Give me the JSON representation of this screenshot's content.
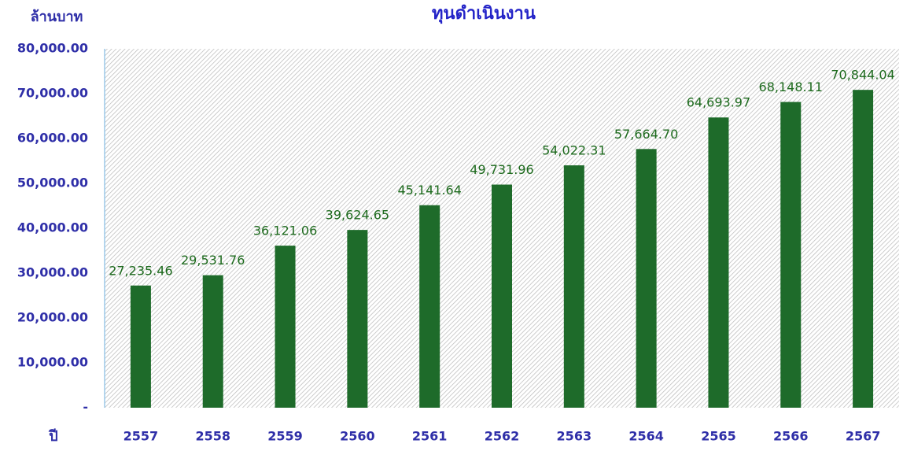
{
  "chart_data": {
    "type": "bar",
    "title": "ทุนดำเนินงาน",
    "y_axis_label": "ล้านบาท",
    "x_axis_label": "ปี",
    "categories": [
      "2557",
      "2558",
      "2559",
      "2560",
      "2561",
      "2562",
      "2563",
      "2564",
      "2565",
      "2566",
      "2567"
    ],
    "values": [
      27235.46,
      29531.76,
      36121.06,
      39624.65,
      45141.64,
      49731.96,
      54022.31,
      57664.7,
      64693.97,
      68148.11,
      70844.04
    ],
    "value_labels": [
      "27,235.46",
      "29,531.76",
      "36,121.06",
      "39,624.65",
      "45,141.64",
      "49,731.96",
      "54,022.31",
      "57,664.70",
      "64,693.97",
      "68,148.11",
      "70,844.04"
    ],
    "color": "#1e6b2a",
    "ylim": [
      0,
      80000
    ],
    "yticks": [
      {
        "value": 0,
        "label": "-"
      },
      {
        "value": 10000,
        "label": "10,000.00"
      },
      {
        "value": 20000,
        "label": "20,000.00"
      },
      {
        "value": 30000,
        "label": "30,000.00"
      },
      {
        "value": 40000,
        "label": "40,000.00"
      },
      {
        "value": 50000,
        "label": "50,000.00"
      },
      {
        "value": 60000,
        "label": "60,000.00"
      },
      {
        "value": 70000,
        "label": "70,000.00"
      },
      {
        "value": 80000,
        "label": "80,000.00"
      }
    ],
    "grid": false
  }
}
